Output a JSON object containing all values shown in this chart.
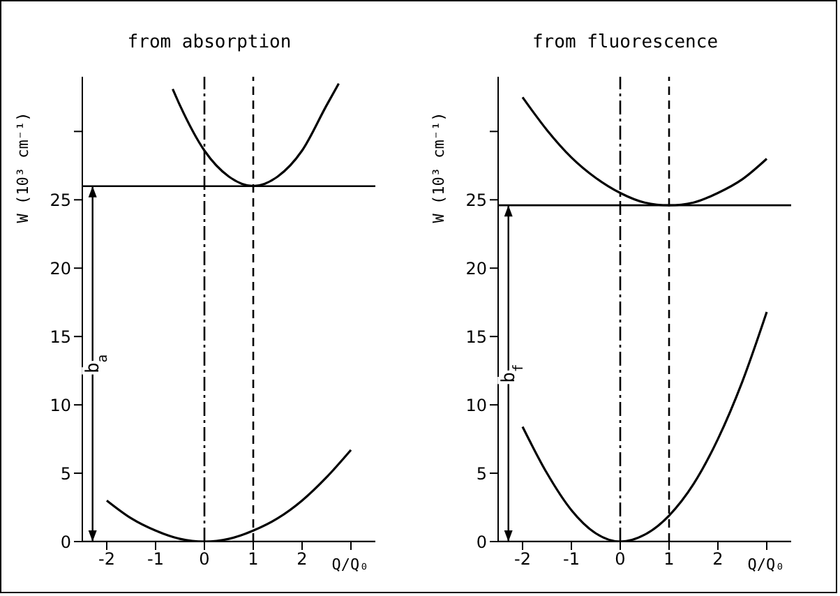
{
  "chart_data": [
    {
      "type": "line",
      "title": "from absorption",
      "xlabel": "Q/Q₀",
      "ylabel": "W (10³ cm⁻¹)",
      "xlim": [
        -2.5,
        3.5
      ],
      "xticks": [
        -2,
        -1,
        0,
        1,
        2,
        {
          "value": 3,
          "label": null
        }
      ],
      "ylim": [
        0,
        34
      ],
      "yticks": [
        0,
        5,
        10,
        15,
        20,
        25,
        {
          "value": 30,
          "label": null
        }
      ],
      "series": [
        {
          "color": "#000000",
          "x": [
            -2,
            -1.5,
            -1,
            -0.5,
            0,
            0.5,
            1,
            1.5,
            2,
            2.5,
            3
          ],
          "values": [
            3.0,
            1.7,
            0.8,
            0.2,
            0,
            0.2,
            0.8,
            1.7,
            3.0,
            4.7,
            6.7
          ]
        },
        {
          "color": "#000000",
          "x": [
            -0.65,
            -0.5,
            0,
            0.5,
            1,
            1.5,
            2,
            2.5,
            2.75
          ],
          "values": [
            33.1,
            31.9,
            28.6,
            26.7,
            26,
            26.7,
            28.6,
            31.9,
            33.5
          ]
        }
      ],
      "ref_lines": [
        {
          "axis": "y",
          "value": 0,
          "color": "#000000",
          "line_style": "solid"
        },
        {
          "axis": "y",
          "value": 26,
          "color": "#000000",
          "line_style": "solid"
        },
        {
          "axis": "x",
          "value": 0,
          "color": "#000000",
          "line_style": "dashdot"
        },
        {
          "axis": "x",
          "value": 1,
          "color": "#000000",
          "line_style": "dashed"
        }
      ],
      "annotations": [
        "b$_{a}$"
      ]
    },
    {
      "type": "line",
      "title": "from fluorescence",
      "xlabel": "Q/Q₀",
      "ylabel": "W (10³ cm⁻¹)",
      "xlim": [
        -2.5,
        3.5
      ],
      "xticks": [
        -2,
        -1,
        0,
        1,
        2,
        {
          "value": 3,
          "label": null
        }
      ],
      "ylim": [
        0,
        34
      ],
      "yticks": [
        0,
        5,
        10,
        15,
        20,
        25,
        {
          "value": 30,
          "label": null
        }
      ],
      "series": [
        {
          "color": "#000000",
          "x": [
            -2,
            -1.5,
            -1,
            -0.5,
            0,
            0.5,
            1,
            1.5,
            2,
            2.5,
            3
          ],
          "values": [
            8.4,
            5.0,
            2.3,
            0.6,
            0,
            0.5,
            1.9,
            4.2,
            7.5,
            11.7,
            16.8
          ]
        },
        {
          "color": "#000000",
          "x": [
            -2,
            -1.5,
            -1,
            -0.5,
            0,
            0.5,
            1,
            1.5,
            2,
            2.5,
            3
          ],
          "values": [
            32.5,
            30.1,
            28.1,
            26.6,
            25.5,
            24.8,
            24.6,
            24.8,
            25.5,
            26.5,
            28.0
          ]
        }
      ],
      "ref_lines": [
        {
          "axis": "y",
          "value": 0,
          "color": "#000000",
          "line_style": "solid"
        },
        {
          "axis": "y",
          "value": 24.6,
          "color": "#000000",
          "line_style": "solid"
        },
        {
          "axis": "x",
          "value": 0,
          "color": "#000000",
          "line_style": "dashdot"
        },
        {
          "axis": "x",
          "value": 1,
          "color": "#000000",
          "line_style": "dashed"
        }
      ],
      "annotations": [
        "b$_{f}$"
      ]
    }
  ]
}
